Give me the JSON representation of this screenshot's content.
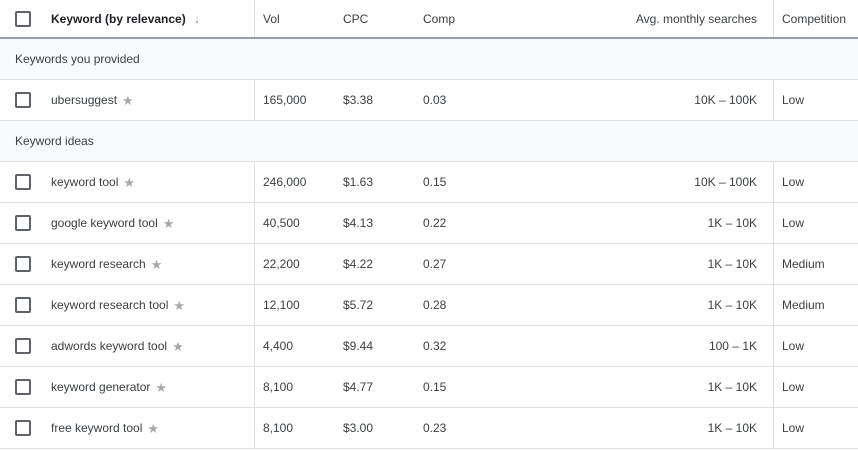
{
  "header": {
    "keyword": "Keyword (by relevance)",
    "vol": "Vol",
    "cpc": "CPC",
    "comp": "Comp",
    "avg": "Avg. monthly searches",
    "competition": "Competition"
  },
  "sections": {
    "provided": "Keywords you provided",
    "ideas": "Keyword ideas"
  },
  "rows": [
    {
      "keyword": "ubersuggest",
      "vol": "165,000",
      "cpc": "$3.38",
      "comp": "0.03",
      "avg": "10K – 100K",
      "competition": "Low"
    },
    {
      "keyword": "keyword tool",
      "vol": "246,000",
      "cpc": "$1.63",
      "comp": "0.15",
      "avg": "10K – 100K",
      "competition": "Low"
    },
    {
      "keyword": "google keyword tool",
      "vol": "40,500",
      "cpc": "$4.13",
      "comp": "0.22",
      "avg": "1K – 10K",
      "competition": "Low"
    },
    {
      "keyword": "keyword research",
      "vol": "22,200",
      "cpc": "$4.22",
      "comp": "0.27",
      "avg": "1K – 10K",
      "competition": "Medium"
    },
    {
      "keyword": "keyword research tool",
      "vol": "12,100",
      "cpc": "$5.72",
      "comp": "0.28",
      "avg": "1K – 10K",
      "competition": "Medium"
    },
    {
      "keyword": "adwords keyword tool",
      "vol": "4,400",
      "cpc": "$9.44",
      "comp": "0.32",
      "avg": "100 – 1K",
      "competition": "Low"
    },
    {
      "keyword": "keyword generator",
      "vol": "8,100",
      "cpc": "$4.77",
      "comp": "0.15",
      "avg": "1K – 10K",
      "competition": "Low"
    },
    {
      "keyword": "free keyword tool",
      "vol": "8,100",
      "cpc": "$3.00",
      "comp": "0.23",
      "avg": "1K – 10K",
      "competition": "Low"
    }
  ],
  "icons": {
    "sort": "arrow-down-icon",
    "star": "star-icon",
    "checkbox": "checkbox-icon"
  }
}
